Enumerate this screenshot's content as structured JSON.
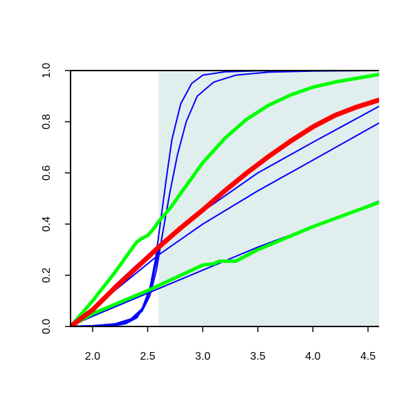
{
  "chart_data": {
    "type": "line",
    "title": "",
    "xlabel": "",
    "ylabel": "",
    "xlim": [
      1.8,
      4.6
    ],
    "ylim": [
      0,
      1
    ],
    "x_ticks": [
      2.0,
      2.5,
      3.0,
      3.5,
      4.0,
      4.5
    ],
    "y_ticks": [
      0.0,
      0.2,
      0.4,
      0.6,
      0.8,
      1.0
    ],
    "x_tick_labels": [
      "2.0",
      "2.5",
      "3.0",
      "3.5",
      "4.0",
      "4.5"
    ],
    "y_tick_labels": [
      "0.0",
      "0.2",
      "0.4",
      "0.6",
      "0.8",
      "1.0"
    ],
    "grid": false,
    "legend": "none",
    "shaded_region": {
      "x": [
        2.6,
        4.6
      ],
      "color": "#e0eeee"
    },
    "series": [
      {
        "color": "#0000ff",
        "width": 2,
        "points": [
          [
            1.8,
            0
          ],
          [
            2.0,
            0.003
          ],
          [
            2.2,
            0.01
          ],
          [
            2.35,
            0.03
          ],
          [
            2.45,
            0.07
          ],
          [
            2.52,
            0.15
          ],
          [
            2.57,
            0.26
          ],
          [
            2.62,
            0.42
          ],
          [
            2.67,
            0.58
          ],
          [
            2.72,
            0.73
          ],
          [
            2.8,
            0.87
          ],
          [
            2.9,
            0.95
          ],
          [
            3.0,
            0.982
          ],
          [
            3.2,
            0.995
          ],
          [
            3.5,
            0.999
          ],
          [
            4.6,
            1.0
          ]
        ]
      },
      {
        "color": "#0000ff",
        "width": 2,
        "points": [
          [
            1.8,
            0
          ],
          [
            2.0,
            0.003
          ],
          [
            2.2,
            0.008
          ],
          [
            2.35,
            0.025
          ],
          [
            2.45,
            0.06
          ],
          [
            2.52,
            0.12
          ],
          [
            2.58,
            0.22
          ],
          [
            2.63,
            0.35
          ],
          [
            2.7,
            0.52
          ],
          [
            2.77,
            0.67
          ],
          [
            2.85,
            0.8
          ],
          [
            2.95,
            0.9
          ],
          [
            3.1,
            0.955
          ],
          [
            3.3,
            0.982
          ],
          [
            3.6,
            0.994
          ],
          [
            4.0,
            0.998
          ],
          [
            4.6,
            1.0
          ]
        ]
      },
      {
        "color": "#0000ff",
        "width": 3,
        "points": [
          [
            1.8,
            0
          ],
          [
            2.0,
            0.001
          ],
          [
            2.2,
            0.005
          ],
          [
            2.3,
            0.012
          ],
          [
            2.4,
            0.035
          ],
          [
            2.48,
            0.09
          ],
          [
            2.53,
            0.16
          ],
          [
            2.6,
            0.3
          ]
        ]
      },
      {
        "color": "#0000ff",
        "width": 2,
        "points": [
          [
            1.8,
            0
          ],
          [
            2.0,
            0.07
          ],
          [
            2.2,
            0.16
          ],
          [
            2.4,
            0.24
          ],
          [
            2.6,
            0.31
          ],
          [
            2.8,
            0.38
          ],
          [
            3.0,
            0.45
          ],
          [
            3.5,
            0.6
          ],
          [
            4.0,
            0.72
          ],
          [
            4.6,
            0.86
          ]
        ]
      },
      {
        "color": "#0000ff",
        "width": 2,
        "points": [
          [
            1.8,
            0
          ],
          [
            2.0,
            0.065
          ],
          [
            2.2,
            0.14
          ],
          [
            2.4,
            0.21
          ],
          [
            2.6,
            0.28
          ],
          [
            2.8,
            0.34
          ],
          [
            3.0,
            0.4
          ],
          [
            3.5,
            0.53
          ],
          [
            4.0,
            0.65
          ],
          [
            4.6,
            0.795
          ]
        ]
      },
      {
        "color": "#0000ff",
        "width": 2,
        "points": [
          [
            1.8,
            0
          ],
          [
            2.0,
            0.04
          ],
          [
            2.5,
            0.13
          ],
          [
            3.0,
            0.22
          ],
          [
            3.5,
            0.31
          ],
          [
            4.0,
            0.39
          ],
          [
            4.6,
            0.49
          ]
        ]
      },
      {
        "color": "#00ff00",
        "width": 5,
        "points": [
          [
            1.8,
            0
          ],
          [
            2.0,
            0.1
          ],
          [
            2.2,
            0.21
          ],
          [
            2.35,
            0.3
          ],
          [
            2.4,
            0.33
          ],
          [
            2.45,
            0.345
          ],
          [
            2.5,
            0.355
          ],
          [
            2.55,
            0.38
          ],
          [
            2.6,
            0.41
          ],
          [
            2.7,
            0.46
          ],
          [
            2.8,
            0.52
          ],
          [
            2.9,
            0.58
          ],
          [
            3.0,
            0.64
          ],
          [
            3.2,
            0.735
          ],
          [
            3.4,
            0.81
          ],
          [
            3.6,
            0.865
          ],
          [
            3.8,
            0.905
          ],
          [
            4.0,
            0.935
          ],
          [
            4.2,
            0.955
          ],
          [
            4.4,
            0.97
          ],
          [
            4.6,
            0.985
          ]
        ]
      },
      {
        "color": "#00ff00",
        "width": 5,
        "points": [
          [
            1.8,
            0
          ],
          [
            2.0,
            0.05
          ],
          [
            2.5,
            0.14
          ],
          [
            2.8,
            0.2
          ],
          [
            3.0,
            0.24
          ],
          [
            3.1,
            0.245
          ],
          [
            3.15,
            0.255
          ],
          [
            3.3,
            0.255
          ],
          [
            3.5,
            0.3
          ],
          [
            4.0,
            0.39
          ],
          [
            4.6,
            0.485
          ]
        ]
      },
      {
        "color": "#ff0000",
        "width": 7,
        "points": [
          [
            1.8,
            0
          ],
          [
            2.0,
            0.065
          ],
          [
            2.2,
            0.15
          ],
          [
            2.4,
            0.23
          ],
          [
            2.6,
            0.31
          ],
          [
            2.8,
            0.385
          ],
          [
            3.0,
            0.455
          ],
          [
            3.2,
            0.53
          ],
          [
            3.4,
            0.6
          ],
          [
            3.6,
            0.665
          ],
          [
            3.8,
            0.725
          ],
          [
            4.0,
            0.78
          ],
          [
            4.2,
            0.825
          ],
          [
            4.4,
            0.858
          ],
          [
            4.6,
            0.885
          ]
        ]
      }
    ]
  }
}
